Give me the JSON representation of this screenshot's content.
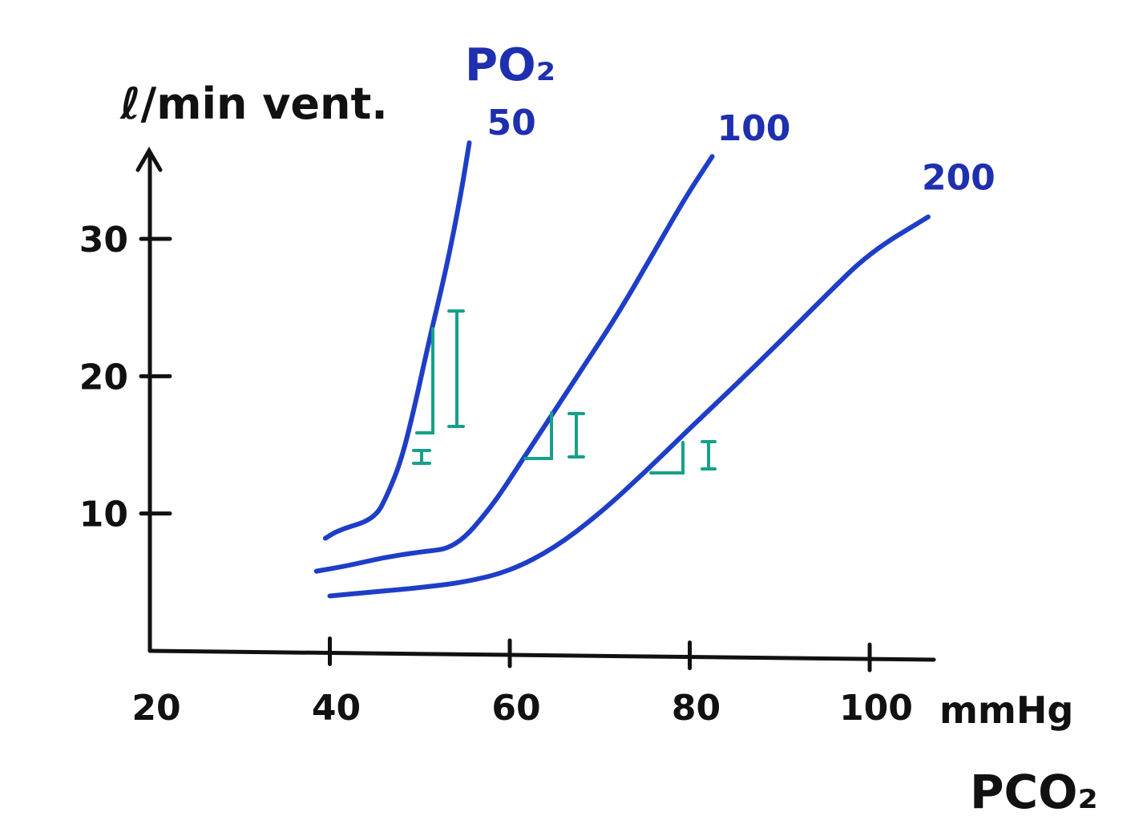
{
  "chart_data": {
    "type": "line",
    "title": "",
    "ylabel": "ℓ/min vent.",
    "xlabel": "PCO₂",
    "x_unit": "mmHg",
    "xlim": [
      20,
      105
    ],
    "ylim": [
      0,
      36
    ],
    "x_ticks": [
      20,
      40,
      60,
      80,
      100
    ],
    "x_tick_labels": [
      "20",
      "40",
      "60",
      "80",
      "100"
    ],
    "y_ticks": [
      10,
      20,
      30
    ],
    "y_tick_labels": [
      "10",
      "20",
      "30"
    ],
    "legend_title": "PO₂",
    "grid": false,
    "colors": {
      "series": "#1e3ec8",
      "axis": "#111111",
      "annotation": "#17a08a",
      "label": "#1e2fb0"
    },
    "series": [
      {
        "name": "50",
        "color": "#1e3ec8",
        "points": [
          [
            39.5,
            8.2
          ],
          [
            41,
            8.8
          ],
          [
            45,
            9.6
          ],
          [
            46.5,
            11.5
          ],
          [
            48,
            14
          ],
          [
            49.5,
            18
          ],
          [
            51,
            22.5
          ],
          [
            53,
            28
          ],
          [
            54.5,
            33
          ],
          [
            55.5,
            37
          ]
        ]
      },
      {
        "name": "100",
        "color": "#1e3ec8",
        "points": [
          [
            38.5,
            5.8
          ],
          [
            42,
            6.2
          ],
          [
            46,
            6.8
          ],
          [
            50,
            7.2
          ],
          [
            54,
            7.5
          ],
          [
            58,
            10.5
          ],
          [
            61,
            13.5
          ],
          [
            64,
            16.5
          ],
          [
            68,
            20.5
          ],
          [
            72,
            24.5
          ],
          [
            76,
            29
          ],
          [
            79.5,
            33
          ],
          [
            82.5,
            36
          ]
        ]
      },
      {
        "name": "200",
        "color": "#1e3ec8",
        "points": [
          [
            40,
            4
          ],
          [
            45,
            4.3
          ],
          [
            50,
            4.6
          ],
          [
            55,
            5
          ],
          [
            60,
            5.8
          ],
          [
            65,
            7.5
          ],
          [
            70,
            10
          ],
          [
            75,
            13
          ],
          [
            80,
            16.2
          ],
          [
            85,
            19.3
          ],
          [
            90,
            22.5
          ],
          [
            95,
            25.8
          ],
          [
            100,
            29
          ],
          [
            106.5,
            31.6
          ]
        ]
      }
    ]
  }
}
